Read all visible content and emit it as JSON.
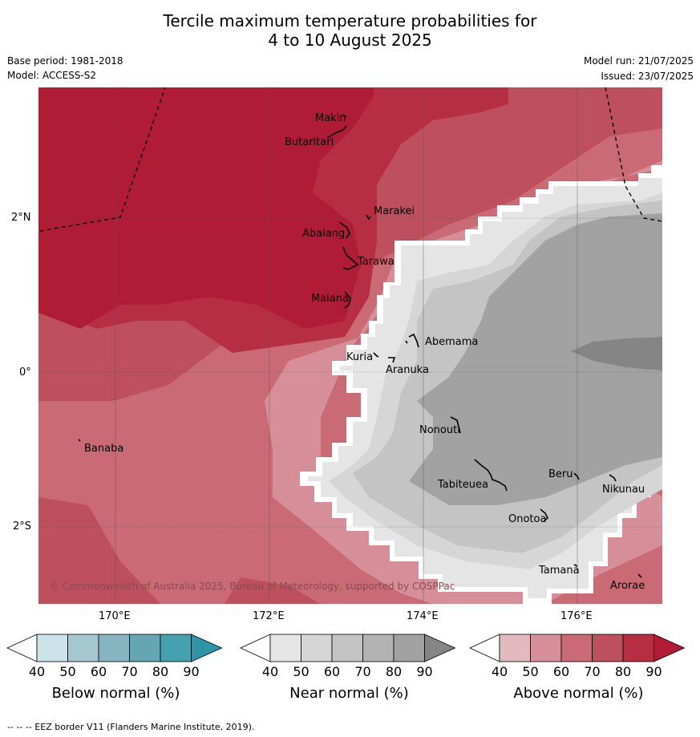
{
  "title_line1": "Tercile maximum temperature probabilities for",
  "title_line2": "4 to 10 August 2025",
  "meta": {
    "base_period": "Base period: 1981-2018",
    "model": "Model: ACCESS-S2",
    "model_run": "Model run: 21/07/2025",
    "issued": "Issued: 23/07/2025"
  },
  "map": {
    "lat_ticks": [
      "2°N",
      "0°",
      "2°S"
    ],
    "lon_ticks": [
      "170°E",
      "172°E",
      "174°E",
      "176°E"
    ],
    "copyright": "© Commonwealth of Australia 2025, Bureau of Meteorology, supported by COSPPac",
    "places": [
      "Makin",
      "Butaritari",
      "Marakei",
      "Abaiang",
      "Tarawa",
      "Maiana",
      "Abemama",
      "Kuria",
      "Aranuka",
      "Banaba",
      "Nonouti",
      "Beru",
      "Tabiteuea",
      "Nikunau",
      "Onotoa",
      "Tamana",
      "Arorae"
    ]
  },
  "colorbars": [
    {
      "title": "Below normal (%)",
      "ticks": [
        "40",
        "50",
        "60",
        "70",
        "80",
        "90"
      ],
      "colors": [
        "#ffffff",
        "#cde3ea",
        "#a6c9d1",
        "#87b5c1",
        "#65a6b5",
        "#45a0b0",
        "#2e95a8"
      ]
    },
    {
      "title": "Near normal (%)",
      "ticks": [
        "40",
        "50",
        "60",
        "70",
        "80",
        "90"
      ],
      "colors": [
        "#ffffff",
        "#e5e5e5",
        "#d6d6d6",
        "#c4c4c4",
        "#b3b3b3",
        "#a2a2a2",
        "#858585"
      ]
    },
    {
      "title": "Above normal (%)",
      "ticks": [
        "40",
        "50",
        "60",
        "70",
        "80",
        "90"
      ],
      "colors": [
        "#ffffff",
        "#e3b9c0",
        "#d68f98",
        "#c96a74",
        "#be4f5c",
        "#b62e42",
        "#b01c36"
      ]
    }
  ],
  "footer": "--  --  -- EEZ border V11 (Flanders Marine Institute, 2019)."
}
